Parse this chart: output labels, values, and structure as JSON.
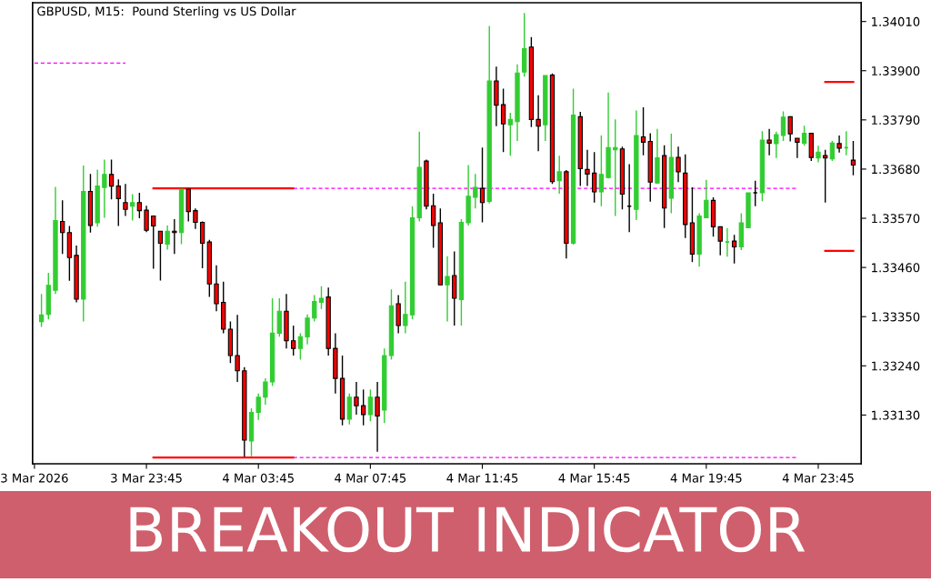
{
  "chart_data": {
    "type": "candlestick",
    "title": "BREAKOUT INDICATOR",
    "subtitle": "GBPUSD, M15:  Pound Sterling vs US Dollar",
    "colors": [
      "#32cd32",
      "#32cd32",
      "#32cd32",
      "#ff0000",
      "#ff0000",
      "#ff0000",
      "#32cd32",
      "#ff0000",
      "#32cd32",
      "#32cd32",
      "#ff0000",
      "#ff0000",
      "#ff0000",
      "#32cd32",
      "#ff0000",
      "#ff0000",
      "#ff0000",
      "#ff0000",
      "#32cd32",
      "#ff0000",
      "#32cd32",
      "#ff0000",
      "#ff0000",
      "#ff0000",
      "#ff0000",
      "#ff0000",
      "#ff0000",
      "#ff0000",
      "#ff0000",
      "#ff0000",
      "#32cd32",
      "#32cd32",
      "#32cd32",
      "#32cd32",
      "#32cd32",
      "#ff0000",
      "#ff0000",
      "#32cd32",
      "#32cd32",
      "#32cd32",
      "#32cd32",
      "#ff0000",
      "#ff0000",
      "#ff0000",
      "#32cd32",
      "#ff0000",
      "#ff0000",
      "#32cd32",
      "#ff0000",
      "#32cd32",
      "#32cd32",
      "#ff0000",
      "#32cd32",
      "#32cd32",
      "#32cd32",
      "#ff0000",
      "#ff0000",
      "#ff0000",
      "#32cd32",
      "#ff0000",
      "#32cd32",
      "#32cd32",
      "#32cd32",
      "#ff0000",
      "#32cd32",
      "#ff0000",
      "#ff0000",
      "#32cd32",
      "#32cd32",
      "#32cd32",
      "#ff0000",
      "#ff0000",
      "#32cd32",
      "#ff0000",
      "#32cd32",
      "#ff0000",
      "#32cd32",
      "#ff0000",
      "#ff0000",
      "#ff0000",
      "#32cd32",
      "#32cd32",
      "#32cd32",
      "#ff0000",
      "#000000",
      "#32cd32",
      "#ff0000",
      "#ff0000",
      "#32cd32",
      "#ff0000",
      "#32cd32",
      "#ff0000",
      "#ff0000",
      "#ff0000",
      "#32cd32",
      "#32cd32",
      "#ff0000",
      "#ff0000",
      "#32cd32",
      "#ff0000",
      "#32cd32",
      "#32cd32",
      "#000000",
      "#32cd32",
      "#ff0000",
      "#32cd32",
      "#32cd32",
      "#ff0000",
      "#ff0000",
      "#32cd32",
      "#ff0000",
      "#32cd32",
      "#ff0000",
      "#32cd32",
      "#ff0000",
      "#32cd32",
      "#ff0000"
    ],
    "x": [
      "2026-03-03T20:00",
      "2026-03-03T20:15",
      "2026-03-03T20:30",
      "2026-03-03T20:45",
      "2026-03-03T21:00",
      "2026-03-03T21:15",
      "2026-03-03T21:30",
      "2026-03-03T21:45",
      "2026-03-03T22:00",
      "2026-03-03T22:15",
      "2026-03-03T22:30",
      "2026-03-03T22:45",
      "2026-03-03T23:00",
      "2026-03-03T23:15",
      "2026-03-03T23:30",
      "2026-03-03T23:45",
      "2026-03-04T00:00",
      "2026-03-04T00:15",
      "2026-03-04T00:30",
      "2026-03-04T00:45",
      "2026-03-04T01:00",
      "2026-03-04T01:15",
      "2026-03-04T01:30",
      "2026-03-04T01:45",
      "2026-03-04T02:00",
      "2026-03-04T02:15",
      "2026-03-04T02:30",
      "2026-03-04T02:45",
      "2026-03-04T03:00",
      "2026-03-04T03:15",
      "2026-03-04T03:30",
      "2026-03-04T03:45",
      "2026-03-04T04:00",
      "2026-03-04T04:15",
      "2026-03-04T04:30",
      "2026-03-04T04:45",
      "2026-03-04T05:00",
      "2026-03-04T05:15",
      "2026-03-04T05:30",
      "2026-03-04T05:45",
      "2026-03-04T06:00",
      "2026-03-04T06:15",
      "2026-03-04T06:30",
      "2026-03-04T06:45",
      "2026-03-04T07:00",
      "2026-03-04T07:15",
      "2026-03-04T07:30",
      "2026-03-04T07:45",
      "2026-03-04T08:00",
      "2026-03-04T08:15",
      "2026-03-04T08:30",
      "2026-03-04T08:45",
      "2026-03-04T09:00",
      "2026-03-04T09:15",
      "2026-03-04T09:30",
      "2026-03-04T09:45",
      "2026-03-04T10:00",
      "2026-03-04T10:15",
      "2026-03-04T10:30",
      "2026-03-04T10:45",
      "2026-03-04T11:00",
      "2026-03-04T11:15",
      "2026-03-04T11:30",
      "2026-03-04T11:45",
      "2026-03-04T12:00",
      "2026-03-04T12:15",
      "2026-03-04T12:30",
      "2026-03-04T12:45",
      "2026-03-04T13:00",
      "2026-03-04T13:15",
      "2026-03-04T13:30",
      "2026-03-04T13:45",
      "2026-03-04T14:00",
      "2026-03-04T14:15",
      "2026-03-04T14:30",
      "2026-03-04T14:45",
      "2026-03-04T15:00",
      "2026-03-04T15:15",
      "2026-03-04T15:30",
      "2026-03-04T15:45",
      "2026-03-04T16:00",
      "2026-03-04T16:15",
      "2026-03-04T16:30",
      "2026-03-04T16:45",
      "2026-03-04T17:00",
      "2026-03-04T17:15",
      "2026-03-04T17:30",
      "2026-03-04T17:45",
      "2026-03-04T18:00",
      "2026-03-04T18:15",
      "2026-03-04T18:30",
      "2026-03-04T18:45",
      "2026-03-04T19:00",
      "2026-03-04T19:15",
      "2026-03-04T19:30",
      "2026-03-04T19:45",
      "2026-03-04T20:00",
      "2026-03-04T20:15",
      "2026-03-04T20:30",
      "2026-03-04T20:45",
      "2026-03-04T21:00",
      "2026-03-04T21:15",
      "2026-03-04T21:30",
      "2026-03-04T21:45",
      "2026-03-04T22:00",
      "2026-03-04T22:15",
      "2026-03-04T22:30",
      "2026-03-04T22:45",
      "2026-03-04T23:00",
      "2026-03-04T23:15",
      "2026-03-04T23:30",
      "2026-03-04T23:45",
      "2026-03-05T00:00",
      "2026-03-05T00:15",
      "2026-03-05T00:30",
      "2026-03-05T00:45",
      "2026-03-05T01:00"
    ],
    "ohlc": [
      [
        1.33339,
        1.33401,
        1.33327,
        1.33354
      ],
      [
        1.33355,
        1.33448,
        1.33344,
        1.3342
      ],
      [
        1.33409,
        1.3364,
        1.33401,
        1.33565
      ],
      [
        1.33563,
        1.3361,
        1.3349,
        1.33538
      ],
      [
        1.33538,
        1.33553,
        1.3343,
        1.33482
      ],
      [
        1.33487,
        1.33509,
        1.33382,
        1.33389
      ],
      [
        1.33389,
        1.33688,
        1.33339,
        1.3363
      ],
      [
        1.3363,
        1.33669,
        1.33538,
        1.33554
      ],
      [
        1.3356,
        1.33679,
        1.33551,
        1.33642
      ],
      [
        1.33639,
        1.33701,
        1.33571,
        1.33668
      ],
      [
        1.33668,
        1.33701,
        1.33612,
        1.33642
      ],
      [
        1.33642,
        1.33657,
        1.33553,
        1.33614
      ],
      [
        1.33605,
        1.33647,
        1.33575,
        1.3359
      ],
      [
        1.33597,
        1.33624,
        1.33565,
        1.33605
      ],
      [
        1.33605,
        1.33627,
        1.3357,
        1.33587
      ],
      [
        1.33588,
        1.33598,
        1.33539,
        1.33543
      ],
      [
        1.33575,
        1.33575,
        1.33457,
        1.33553
      ],
      [
        1.33541,
        1.33541,
        1.33431,
        1.33514
      ],
      [
        1.33512,
        1.33554,
        1.335,
        1.33541
      ],
      [
        1.33541,
        1.33568,
        1.3349,
        1.33538
      ],
      [
        1.33538,
        1.33635,
        1.33512,
        1.33635
      ],
      [
        1.33635,
        1.33635,
        1.33563,
        1.33585
      ],
      [
        1.33587,
        1.33592,
        1.33546,
        1.33561
      ],
      [
        1.33561,
        1.33563,
        1.33458,
        1.33514
      ],
      [
        1.33517,
        1.33522,
        1.33394,
        1.33423
      ],
      [
        1.33423,
        1.33465,
        1.33362,
        1.33379
      ],
      [
        1.33382,
        1.33428,
        1.33313,
        1.33322
      ],
      [
        1.33322,
        1.33339,
        1.33246,
        1.33263
      ],
      [
        1.33263,
        1.33354,
        1.33204,
        1.33229
      ],
      [
        1.33229,
        1.33237,
        1.33037,
        1.33074
      ],
      [
        1.33072,
        1.33145,
        1.33038,
        1.33136
      ],
      [
        1.33136,
        1.33178,
        1.33119,
        1.3317
      ],
      [
        1.3317,
        1.33212,
        1.33153,
        1.33204
      ],
      [
        1.33204,
        1.33391,
        1.33195,
        1.33313
      ],
      [
        1.33313,
        1.33391,
        1.33305,
        1.33362
      ],
      [
        1.33362,
        1.33401,
        1.33279,
        1.33296
      ],
      [
        1.33296,
        1.3333,
        1.33263,
        1.33279
      ],
      [
        1.33279,
        1.33313,
        1.33254,
        1.33305
      ],
      [
        1.33305,
        1.33355,
        1.33288,
        1.33347
      ],
      [
        1.33347,
        1.33398,
        1.33339,
        1.33384
      ],
      [
        1.33382,
        1.33418,
        1.33367,
        1.33391
      ],
      [
        1.33394,
        1.33415,
        1.33263,
        1.33279
      ],
      [
        1.33279,
        1.33313,
        1.33178,
        1.33212
      ],
      [
        1.33212,
        1.33263,
        1.33107,
        1.33121
      ],
      [
        1.33121,
        1.33178,
        1.33109,
        1.3317
      ],
      [
        1.3317,
        1.33204,
        1.33131,
        1.33151
      ],
      [
        1.33151,
        1.33187,
        1.33107,
        1.33131
      ],
      [
        1.33131,
        1.33187,
        1.33116,
        1.3317
      ],
      [
        1.3317,
        1.33204,
        1.33048,
        1.33128
      ],
      [
        1.33141,
        1.33279,
        1.33112,
        1.33263
      ],
      [
        1.33263,
        1.33411,
        1.33254,
        1.33374
      ],
      [
        1.33379,
        1.33398,
        1.33313,
        1.3333
      ],
      [
        1.3333,
        1.33428,
        1.33313,
        1.33355
      ],
      [
        1.33354,
        1.33597,
        1.33344,
        1.33571
      ],
      [
        1.33571,
        1.33764,
        1.33563,
        1.33684
      ],
      [
        1.33698,
        1.33701,
        1.3359,
        1.33597
      ],
      [
        1.33598,
        1.33625,
        1.33504,
        1.33554
      ],
      [
        1.3356,
        1.33592,
        1.33421,
        1.33421
      ],
      [
        1.33421,
        1.33485,
        1.33339,
        1.3344
      ],
      [
        1.33442,
        1.33496,
        1.3333,
        1.33391
      ],
      [
        1.33388,
        1.33568,
        1.3333,
        1.33561
      ],
      [
        1.3356,
        1.33689,
        1.33554,
        1.33619
      ],
      [
        1.33617,
        1.33669,
        1.33592,
        1.33639
      ],
      [
        1.33637,
        1.33728,
        1.33561,
        1.33605
      ],
      [
        1.33608,
        1.34,
        1.33603,
        1.33877
      ],
      [
        1.33877,
        1.33909,
        1.33776,
        1.33823
      ],
      [
        1.33824,
        1.3386,
        1.33718,
        1.33781
      ],
      [
        1.33779,
        1.33806,
        1.3371,
        1.33791
      ],
      [
        1.33786,
        1.33914,
        1.33743,
        1.33895
      ],
      [
        1.33897,
        1.34029,
        1.33887,
        1.33949
      ],
      [
        1.33953,
        1.33975,
        1.33774,
        1.33791
      ],
      [
        1.33791,
        1.33845,
        1.3372,
        1.33776
      ],
      [
        1.33779,
        1.33889,
        1.33743,
        1.33889
      ],
      [
        1.3389,
        1.33894,
        1.33647,
        1.33652
      ],
      [
        1.33654,
        1.3371,
        1.33625,
        1.33674
      ],
      [
        1.33674,
        1.33678,
        1.3348,
        1.33514
      ],
      [
        1.33514,
        1.3386,
        1.33511,
        1.33801
      ],
      [
        1.33797,
        1.33808,
        1.33642,
        1.33681
      ],
      [
        1.33679,
        1.33723,
        1.33642,
        1.33669
      ],
      [
        1.33671,
        1.33718,
        1.33605,
        1.33629
      ],
      [
        1.33629,
        1.33755,
        1.33597,
        1.33668
      ],
      [
        1.33661,
        1.33851,
        1.33659,
        1.33728
      ],
      [
        1.33723,
        1.33791,
        1.33575,
        1.33728
      ],
      [
        1.33725,
        1.3373,
        1.3359,
        1.33624
      ],
      [
        1.33597,
        1.33691,
        1.33539,
        1.33597
      ],
      [
        1.3359,
        1.33811,
        1.33566,
        1.33755
      ],
      [
        1.33752,
        1.33818,
        1.33711,
        1.3374
      ],
      [
        1.33742,
        1.3376,
        1.33607,
        1.33651
      ],
      [
        1.33649,
        1.3377,
        1.33647,
        1.33705
      ],
      [
        1.3371,
        1.33733,
        1.33548,
        1.33593
      ],
      [
        1.33615,
        1.33759,
        1.33581,
        1.33706
      ],
      [
        1.33706,
        1.3373,
        1.33651,
        1.33674
      ],
      [
        1.33671,
        1.33713,
        1.33526,
        1.33556
      ],
      [
        1.3356,
        1.33639,
        1.33472,
        1.3349
      ],
      [
        1.3349,
        1.33581,
        1.33462,
        1.33575
      ],
      [
        1.33571,
        1.33656,
        1.33571,
        1.3361
      ],
      [
        1.3361,
        1.33617,
        1.33529,
        1.33551
      ],
      [
        1.33551,
        1.33551,
        1.33487,
        1.33519
      ],
      [
        1.33517,
        1.33548,
        1.33484,
        1.33517
      ],
      [
        1.33519,
        1.33533,
        1.33469,
        1.33506
      ],
      [
        1.33506,
        1.33581,
        1.33499,
        1.3356
      ],
      [
        1.33549,
        1.33627,
        1.33549,
        1.33627
      ],
      [
        1.33627,
        1.33654,
        1.33597,
        1.33627
      ],
      [
        1.33627,
        1.33765,
        1.33608,
        1.33745
      ],
      [
        1.33745,
        1.3377,
        1.33711,
        1.33738
      ],
      [
        1.33737,
        1.33764,
        1.33705,
        1.33757
      ],
      [
        1.33755,
        1.33809,
        1.33743,
        1.33796
      ],
      [
        1.33797,
        1.33797,
        1.33742,
        1.33759
      ],
      [
        1.33749,
        1.33749,
        1.33705,
        1.3374
      ],
      [
        1.33738,
        1.33777,
        1.33732,
        1.3376
      ],
      [
        1.3376,
        1.3376,
        1.33698,
        1.33706
      ],
      [
        1.33705,
        1.33732,
        1.33695,
        1.33718
      ],
      [
        1.3371,
        1.33723,
        1.33605,
        1.33705
      ],
      [
        1.33703,
        1.33743,
        1.33698,
        1.33738
      ],
      [
        1.33737,
        1.33755,
        1.33717,
        1.33727
      ],
      [
        1.33728,
        1.33765,
        1.33711,
        1.33728
      ],
      [
        1.337,
        1.33743,
        1.33666,
        1.33689
      ]
    ],
    "series": [
      {
        "type": "line",
        "color": "#ff0000",
        "line_style": "solid",
        "x": [
          "2026-03-04T00:00",
          "2026-03-04T05:00"
        ],
        "values": [
          1.33637,
          1.33637
        ]
      },
      {
        "type": "line",
        "color": "#ff00ff",
        "line_style": "dashed",
        "x": [
          "2026-03-04T05:00",
          "2026-03-04T23:00"
        ],
        "values": [
          1.33637,
          1.33637
        ]
      },
      {
        "type": "line",
        "color": "#ff0000",
        "line_style": "solid",
        "x": [
          "2026-03-04T00:00",
          "2026-03-04T05:00"
        ],
        "values": [
          1.33035,
          1.33035
        ]
      },
      {
        "type": "line",
        "color": "#ff00ff",
        "line_style": "dashed",
        "x": [
          "2026-03-04T05:00",
          "2026-03-04T23:00"
        ],
        "values": [
          1.33035,
          1.33035
        ]
      },
      {
        "type": "line",
        "color": "#ff00ff",
        "line_style": "dashed",
        "x": [
          "2026-03-03T19:45",
          "2026-03-03T23:00"
        ],
        "values": [
          1.33917,
          1.33917
        ]
      },
      {
        "type": "line",
        "color": "#ff0000",
        "line_style": "solid",
        "x": [
          "2026-03-05T00:00",
          "2026-03-05T01:00"
        ],
        "values": [
          1.33875,
          1.33875
        ]
      },
      {
        "type": "line",
        "color": "#ff0000",
        "line_style": "solid",
        "x": [
          "2026-03-05T00:00",
          "2026-03-05T01:00"
        ],
        "values": [
          1.33497,
          1.33497
        ]
      }
    ],
    "xlim": [
      "2026-03-03T19:41",
      "2026-03-05T01:17"
    ],
    "xticks": [
      {
        "value": "2026-03-03T19:45",
        "label": "3 Mar 2026"
      },
      {
        "value": "2026-03-03T23:45",
        "label": "3 Mar 23:45"
      },
      {
        "value": "2026-03-04T03:45",
        "label": "4 Mar 03:45"
      },
      {
        "value": "2026-03-04T07:45",
        "label": "4 Mar 07:45"
      },
      {
        "value": "2026-03-04T11:45",
        "label": "4 Mar 11:45"
      },
      {
        "value": "2026-03-04T15:45",
        "label": "4 Mar 15:45"
      },
      {
        "value": "2026-03-04T19:45",
        "label": "4 Mar 19:45"
      },
      {
        "value": "2026-03-04T23:45",
        "label": "4 Mar 23:45"
      }
    ],
    "ylim": [
      1.33021,
      1.34052
    ],
    "yticks": [
      {
        "value": 1.3313,
        "label": "1.33130"
      },
      {
        "value": 1.3324,
        "label": "1.33240"
      },
      {
        "value": 1.3335,
        "label": "1.33350"
      },
      {
        "value": 1.3346,
        "label": "1.33460"
      },
      {
        "value": 1.3357,
        "label": "1.33570"
      },
      {
        "value": 1.3368,
        "label": "1.33680"
      },
      {
        "value": 1.3379,
        "label": "1.33790"
      },
      {
        "value": 1.339,
        "label": "1.33900"
      },
      {
        "value": 1.3401,
        "label": "1.34010"
      }
    ]
  }
}
